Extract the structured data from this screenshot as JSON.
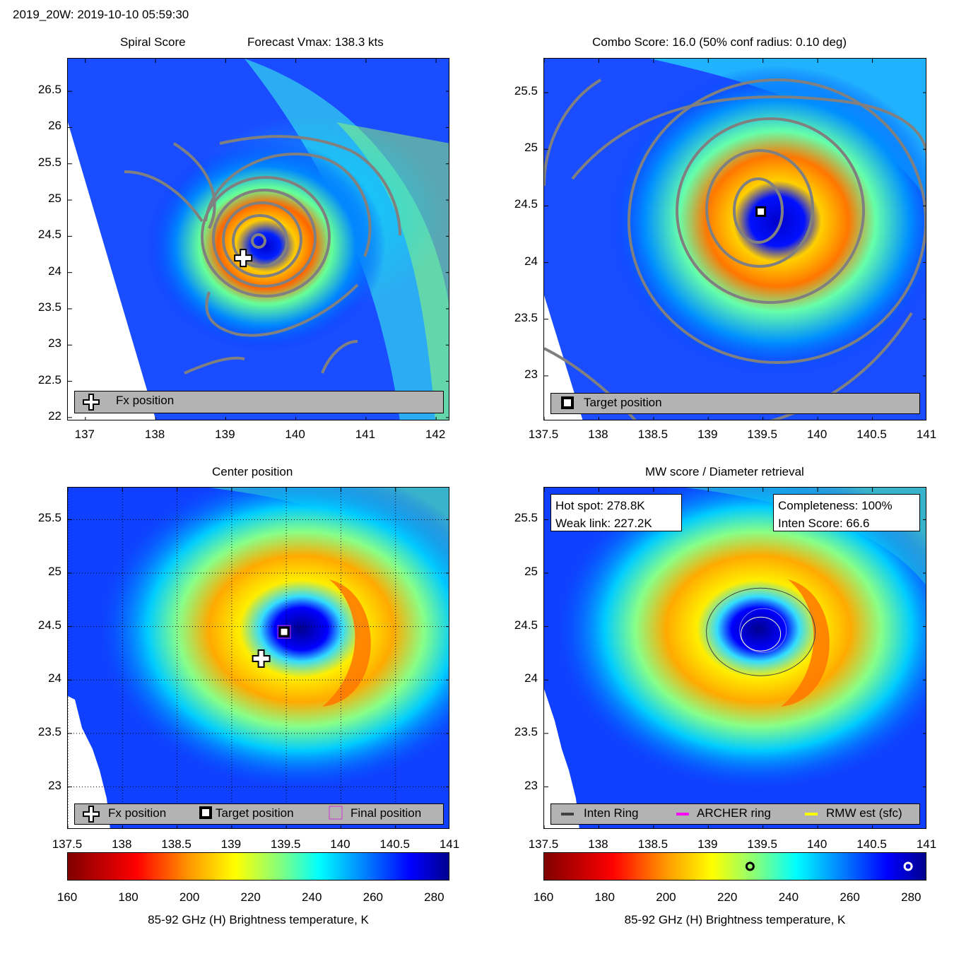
{
  "header": {
    "title": "2019_20W: 2019-10-10 05:59:30"
  },
  "panels": {
    "spiral": {
      "title_left": "Spiral Score",
      "title_right": "Forecast Vmax: 138.3 kts",
      "legend": {
        "fx": "Fx position"
      }
    },
    "combo": {
      "title": "Combo Score: 16.0  (50% conf radius: 0.10 deg)",
      "legend": {
        "target": "Target position"
      }
    },
    "center": {
      "title": "Center position",
      "legend": {
        "fx": "Fx position",
        "target": "Target position",
        "final": "Final position"
      }
    },
    "mw": {
      "title": "MW score / Diameter retrieval",
      "hot_spot": "Hot spot: 278.8K",
      "weak_link": "Weak link: 227.2K",
      "completeness": "Completeness: 100%",
      "inten_score": "Inten Score: 66.6",
      "legend": {
        "inten": "Inten Ring",
        "archer": "ARCHER ring",
        "rmw": "RMW est (sfc)"
      }
    }
  },
  "colorbars": {
    "label": "85-92 GHz (H) Brightness temperature, K"
  },
  "colors": {
    "archer": "#ff00ff",
    "rmw": "#ffff00",
    "inten": "#404040",
    "contour": "#808080"
  },
  "chart_data": [
    {
      "type": "heatmap",
      "panel": "spiral",
      "x_ticks": [
        "137",
        "138",
        "139",
        "140",
        "141",
        "142"
      ],
      "y_ticks": [
        "26.5",
        "26",
        "25.5",
        "25",
        "24.5",
        "24",
        "23.5",
        "23",
        "22.5",
        "22"
      ],
      "xlim": [
        136.75,
        142.2
      ],
      "ylim": [
        21.95,
        26.95
      ],
      "fx_position": [
        139.25,
        24.2
      ],
      "center": [
        139.48,
        24.42
      ]
    },
    {
      "type": "heatmap",
      "panel": "combo",
      "x_ticks": [
        "137.5",
        "138",
        "138.5",
        "139",
        "139.5",
        "140",
        "140.5",
        "141"
      ],
      "y_ticks": [
        "25.5",
        "25",
        "24.5",
        "24",
        "23.5",
        "23"
      ],
      "xlim": [
        137.5,
        141
      ],
      "ylim": [
        22.6,
        25.8
      ],
      "target_position": [
        139.48,
        24.45
      ]
    },
    {
      "type": "heatmap",
      "panel": "center",
      "x_ticks": [
        "137.5",
        "138",
        "138.5",
        "139",
        "139.5",
        "140",
        "140.5",
        "141"
      ],
      "y_ticks": [
        "25.5",
        "25",
        "24.5",
        "24",
        "23.5",
        "23"
      ],
      "xlim": [
        137.5,
        141
      ],
      "ylim": [
        22.6,
        25.8
      ],
      "fx_position": [
        139.27,
        24.2
      ],
      "target_position": [
        139.48,
        24.45
      ],
      "final_position": [
        139.48,
        24.45
      ]
    },
    {
      "type": "heatmap",
      "panel": "mw",
      "x_ticks": [
        "137.5",
        "138",
        "138.5",
        "139",
        "139.5",
        "140",
        "140.5",
        "141"
      ],
      "y_ticks": [
        "25.5",
        "25",
        "24.5",
        "24",
        "23.5",
        "23"
      ],
      "xlim": [
        137.5,
        141
      ],
      "ylim": [
        22.6,
        25.8
      ],
      "center": [
        139.48,
        24.45
      ],
      "colorbar_markers": [
        {
          "label": "weak link",
          "value": 227.2
        },
        {
          "label": "hot spot",
          "value": 278.8
        }
      ]
    },
    {
      "type": "colorbar",
      "range": [
        160,
        285
      ],
      "ticks": [
        "160",
        "180",
        "200",
        "220",
        "240",
        "260",
        "280"
      ]
    }
  ]
}
